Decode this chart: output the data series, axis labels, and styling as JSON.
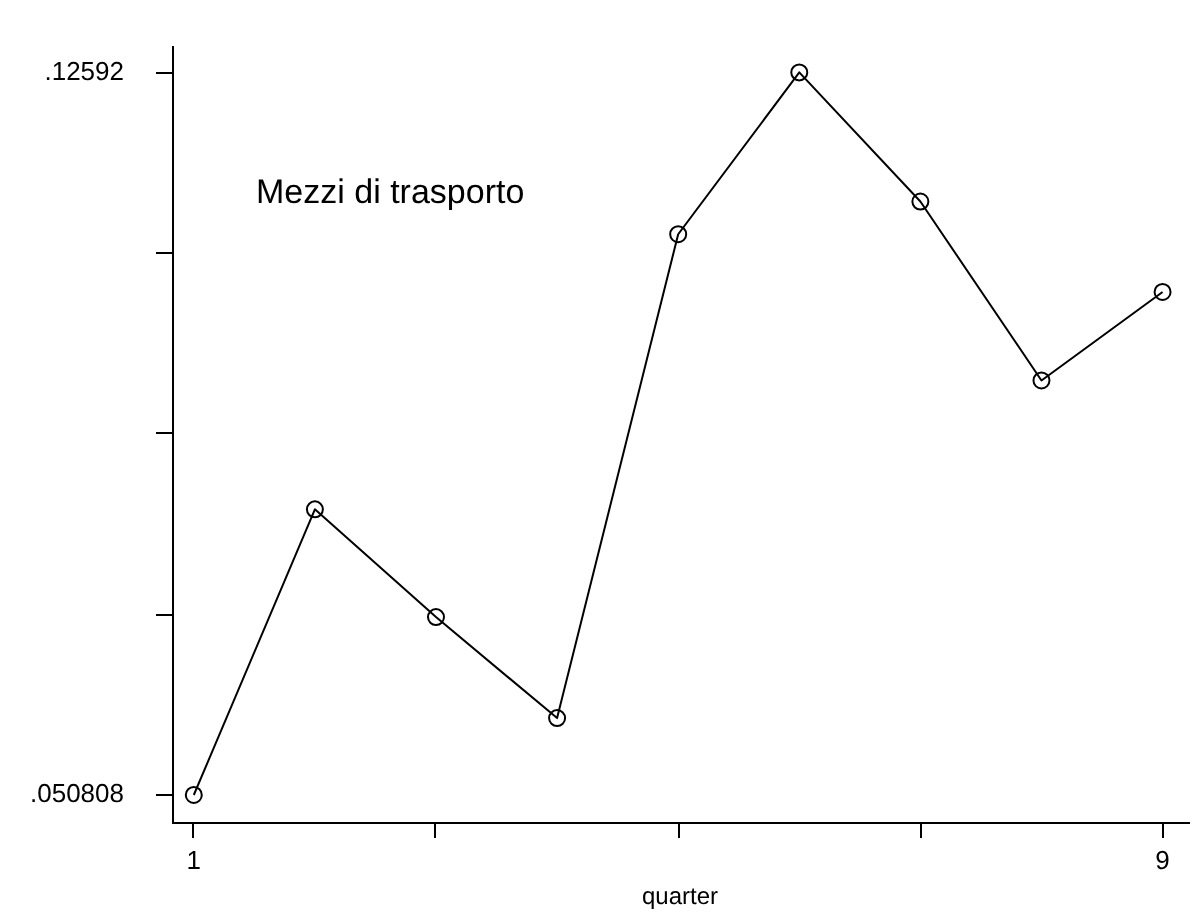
{
  "chart_data": {
    "type": "line",
    "title": "Mezzi di trasporto",
    "xlabel": "quarter",
    "x": [
      1,
      2,
      3,
      4,
      5,
      6,
      7,
      8,
      9
    ],
    "series": [
      {
        "color": "#000000",
        "values": [
          0.050808,
          0.0805,
          0.0693,
          0.0588,
          0.1091,
          0.12592,
          0.1125,
          0.0939,
          0.1031
        ]
      }
    ],
    "xlim": [
      0.82,
      9.21
    ],
    "xticks": [
      1,
      {
        "value": 3,
        "label": null
      },
      {
        "value": 5,
        "label": null
      },
      {
        "value": 7,
        "label": null
      },
      9
    ],
    "ylim": [
      0.048,
      0.1285
    ],
    "yticks": [
      {
        "value": 0.050808,
        "label": ".050808"
      },
      {
        "value": 0.069586,
        "label": null
      },
      {
        "value": 0.088364,
        "label": null
      },
      {
        "value": 0.107142,
        "label": null
      },
      {
        "value": 0.12592,
        "label": ".12592"
      }
    ],
    "marker": "circle",
    "line_style": "solid"
  }
}
